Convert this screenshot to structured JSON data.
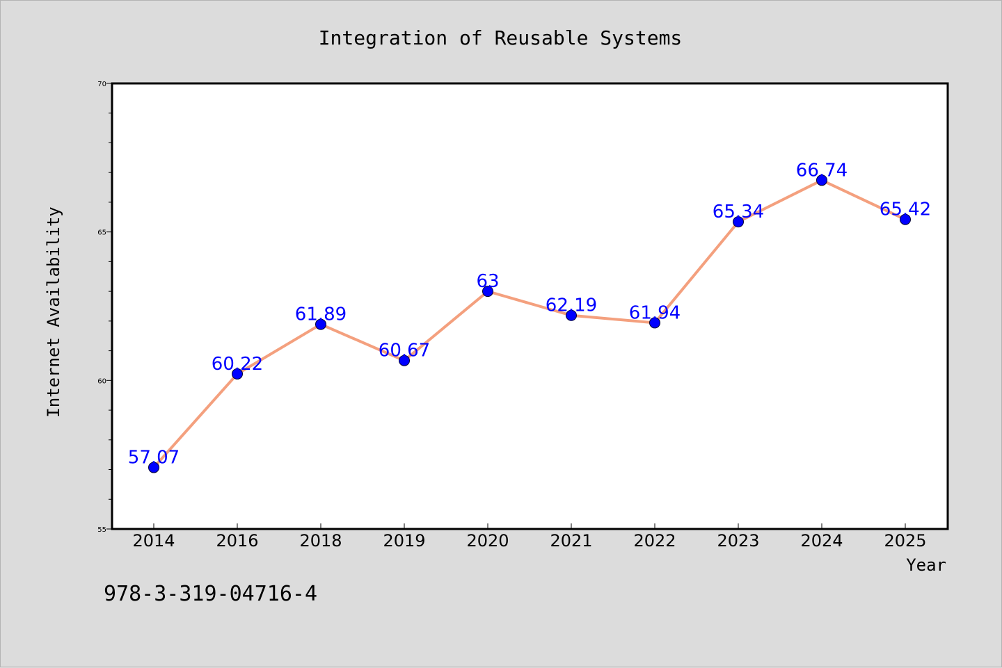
{
  "chart_data": {
    "type": "line",
    "title": "Integration of Reusable Systems",
    "xlabel": "Year",
    "ylabel": "Internet Availability",
    "categories": [
      "2014",
      "2016",
      "2018",
      "2019",
      "2020",
      "2021",
      "2022",
      "2023",
      "2024",
      "2025"
    ],
    "values": [
      57.07,
      60.22,
      61.89,
      60.67,
      63,
      62.19,
      61.94,
      65.34,
      66.74,
      65.42
    ],
    "data_labels": [
      "57.07",
      "60.22",
      "61.89",
      "60.67",
      "63",
      "62.19",
      "61.94",
      "65.34",
      "66.74",
      "65.42"
    ],
    "ylim": [
      55,
      70
    ],
    "y_ticks": [
      55,
      60,
      65,
      70
    ],
    "y_tick_labels": [
      "55",
      "60",
      "65",
      "70"
    ],
    "grid": false,
    "legend": "none",
    "colors": {
      "line": "#f4a07e",
      "marker": "#0000ff",
      "data_label": "#0000ff",
      "plot_background": "#ffffff",
      "figure_background": "#dcdcdc"
    }
  },
  "footnote": "978-3-319-04716-4"
}
